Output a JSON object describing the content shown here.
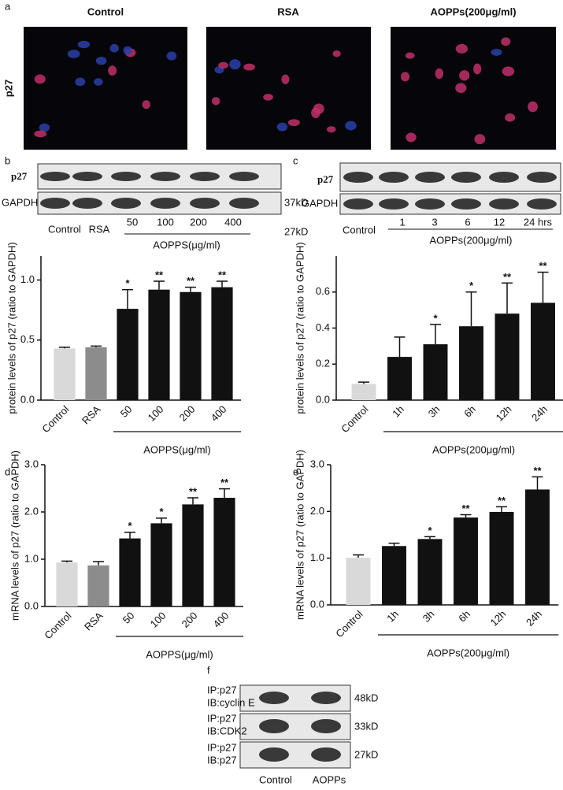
{
  "panel_a": {
    "label": "a",
    "columns": [
      "Control",
      "RSA",
      "AOPPs(200μg/ml)"
    ],
    "row_label": "p27"
  },
  "panel_b": {
    "label": "b",
    "rows": [
      "p27",
      "GAPDH"
    ],
    "size_labels": [
      "37kD",
      "27kD"
    ],
    "lanes": [
      "Control",
      "RSA",
      "50",
      "100",
      "200",
      "400"
    ],
    "group_label": "AOPPS(μg/ml)"
  },
  "panel_c": {
    "label": "c",
    "rows": [
      "p27",
      "GAPDH"
    ],
    "lanes": [
      "Control",
      "1",
      "3",
      "6",
      "12",
      "24 hrs"
    ],
    "group_label": "AOPPs(200μg/ml)"
  },
  "chart_data": [
    {
      "type": "bar",
      "ylabel": "protein levels of p27 (ratio to GAPDH)",
      "categories": [
        "Control",
        "RSA",
        "50",
        "100",
        "200",
        "400"
      ],
      "values": [
        0.43,
        0.44,
        0.76,
        0.92,
        0.9,
        0.94
      ],
      "errors": [
        0.01,
        0.01,
        0.16,
        0.07,
        0.04,
        0.05
      ],
      "annotations": [
        null,
        null,
        "*",
        "**",
        "**",
        "**"
      ],
      "colors": [
        "#d9d9d9",
        "#8c8c8c",
        "#111111",
        "#111111",
        "#111111",
        "#111111"
      ],
      "ylim": [
        0,
        1.2
      ],
      "yticks": [
        {
          "value": 0,
          "label": "0.0"
        },
        {
          "value": 0.5,
          "label": "0.5"
        },
        {
          "value": 1,
          "label": "1.0"
        }
      ],
      "group_label": "AOPPS(μg/ml)"
    },
    {
      "type": "bar",
      "ylabel": "protein levels of p27 (ratio to GAPDH)",
      "categories": [
        "Control",
        "1h",
        "3h",
        "6h",
        "12h",
        "24h"
      ],
      "values": [
        0.09,
        0.24,
        0.31,
        0.41,
        0.48,
        0.54
      ],
      "errors": [
        0.01,
        0.11,
        0.11,
        0.19,
        0.17,
        0.17
      ],
      "annotations": [
        null,
        null,
        "*",
        "*",
        "**",
        "**"
      ],
      "colors": [
        "#d9d9d9",
        "#111111",
        "#111111",
        "#111111",
        "#111111",
        "#111111"
      ],
      "ylim": [
        0,
        0.8
      ],
      "yticks": [
        {
          "value": 0,
          "label": "0.0"
        },
        {
          "value": 0.2,
          "label": "0.2"
        },
        {
          "value": 0.4,
          "label": "0.4"
        },
        {
          "value": 0.6,
          "label": "0.6"
        }
      ],
      "group_label": "AOPPs(200μg/ml)"
    },
    {
      "type": "bar",
      "panel_label": "d",
      "ylabel": "mRNA levels of p27 (ratio to GAPDH)",
      "categories": [
        "Control",
        "RSA",
        "50",
        "100",
        "200",
        "400"
      ],
      "values": [
        0.93,
        0.87,
        1.44,
        1.76,
        2.16,
        2.3
      ],
      "errors": [
        0.03,
        0.08,
        0.13,
        0.11,
        0.14,
        0.19
      ],
      "annotations": [
        null,
        null,
        "*",
        "*",
        "**",
        "**"
      ],
      "colors": [
        "#d9d9d9",
        "#8c8c8c",
        "#111111",
        "#111111",
        "#111111",
        "#111111"
      ],
      "ylim": [
        0,
        3
      ],
      "yticks": [
        {
          "value": 0,
          "label": "0.0"
        },
        {
          "value": 1,
          "label": "1.0"
        },
        {
          "value": 2,
          "label": "2.0"
        },
        {
          "value": 3,
          "label": "3.0"
        }
      ],
      "group_label": "AOPPS(μg/ml)"
    },
    {
      "type": "bar",
      "panel_label": "e",
      "ylabel": "mRNA levels of p27 (ratio to GAPDH)",
      "categories": [
        "Control",
        "1h",
        "3h",
        "6h",
        "12h",
        "24h"
      ],
      "values": [
        1.01,
        1.26,
        1.41,
        1.87,
        1.99,
        2.47
      ],
      "errors": [
        0.06,
        0.06,
        0.05,
        0.06,
        0.11,
        0.27
      ],
      "annotations": [
        null,
        null,
        "*",
        "**",
        "**",
        "**"
      ],
      "colors": [
        "#d9d9d9",
        "#111111",
        "#111111",
        "#111111",
        "#111111",
        "#111111"
      ],
      "ylim": [
        0,
        3
      ],
      "yticks": [
        {
          "value": 0,
          "label": "0.0"
        },
        {
          "value": 1,
          "label": "1.0"
        },
        {
          "value": 2,
          "label": "2.0"
        },
        {
          "value": 3,
          "label": "3.0"
        }
      ],
      "group_label": "AOPPs(200μg/ml)"
    }
  ],
  "panel_f": {
    "label": "f",
    "rows": [
      [
        "IP:p27",
        "IB:cyclin E"
      ],
      [
        "IP:p27",
        "IB:CDK2"
      ],
      [
        "IP:p27",
        "IB:p27"
      ]
    ],
    "sizes": [
      "48kD",
      "33kD",
      "27kD"
    ],
    "lanes": [
      "Control",
      "AOPPs"
    ]
  }
}
